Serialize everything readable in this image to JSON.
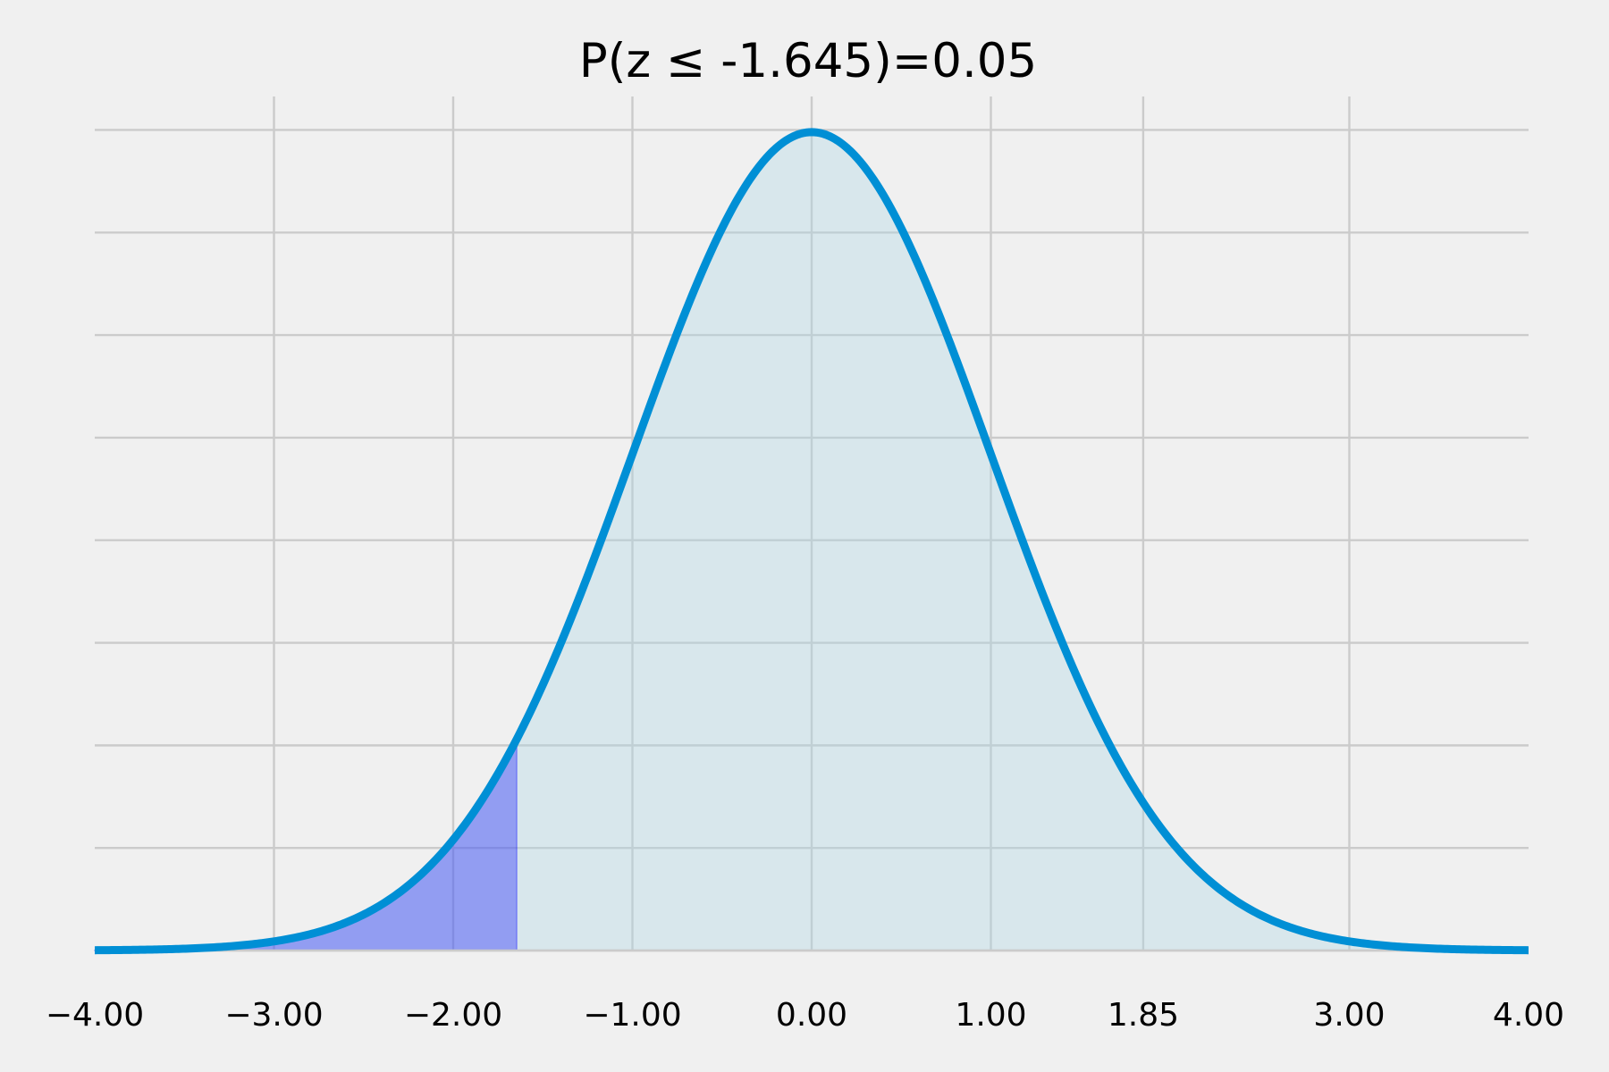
{
  "chart_data": {
    "type": "area",
    "title": "P(z ≤ -1.645)=0.05",
    "xlabel": "",
    "ylabel": "",
    "xlim": [
      -4.0,
      4.0
    ],
    "ylim": [
      0,
      0.3989
    ],
    "x_ticks": [
      {
        "value": -4.0,
        "label": "−4.00"
      },
      {
        "value": -3.0,
        "label": "−3.00"
      },
      {
        "value": -2.0,
        "label": "−2.00"
      },
      {
        "value": -1.0,
        "label": "−1.00"
      },
      {
        "value": 0.0,
        "label": "0.00"
      },
      {
        "value": 1.0,
        "label": "1.00"
      },
      {
        "value": 1.85,
        "label": "1.85"
      },
      {
        "value": 3.0,
        "label": "3.00"
      },
      {
        "value": 4.0,
        "label": "4.00"
      }
    ],
    "y_gridlines": [
      0.0,
      0.05,
      0.1,
      0.15,
      0.2,
      0.25,
      0.3,
      0.35,
      0.4
    ],
    "y_tick_labels_visible": false,
    "grid": true,
    "series": [
      {
        "name": "standard normal pdf",
        "distribution": "normal",
        "mean": 0,
        "std": 1,
        "x_range": [
          -4.0,
          4.0
        ],
        "color": "#008fd5",
        "fill_color": "#add8e6"
      }
    ],
    "shaded_region": {
      "label": "P(z ≤ -1.645)",
      "x_from": -4.0,
      "x_to": -1.645,
      "probability": 0.05,
      "color": "#0000ff"
    },
    "colors": {
      "background": "#f0f0f0",
      "grid": "#cbcbcb"
    }
  }
}
